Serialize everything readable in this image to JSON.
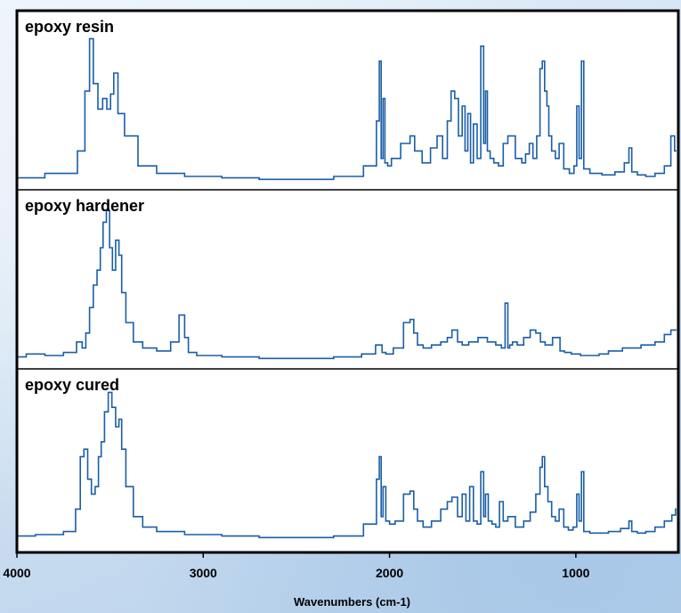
{
  "chart_data": {
    "type": "line",
    "x_reversed": true,
    "xlim": [
      4000,
      450
    ],
    "xlabel": "Wavenumbers (cm-1)",
    "xticks": [
      4000,
      3000,
      2000,
      1000
    ],
    "grid": false,
    "colors": {
      "line": "#1a5ea8",
      "frame": "#000000",
      "plot_bg": "#ffffff"
    },
    "panels": [
      {
        "title": "epoxy resin",
        "x": [
          4000,
          3700,
          3650,
          3620,
          3600,
          3580,
          3550,
          3530,
          3505,
          3490,
          3470,
          3445,
          3400,
          3300,
          3200,
          3000,
          2800,
          2600,
          2400,
          2200,
          2080,
          2060,
          2050,
          2040,
          2030,
          2020,
          2000,
          1980,
          1900,
          1880,
          1850,
          1800,
          1760,
          1730,
          1700,
          1680,
          1660,
          1640,
          1620,
          1600,
          1590,
          1570,
          1560,
          1540,
          1520,
          1500,
          1490,
          1480,
          1470,
          1450,
          1430,
          1400,
          1380,
          1350,
          1300,
          1280,
          1260,
          1240,
          1220,
          1200,
          1185,
          1175,
          1160,
          1150,
          1140,
          1120,
          1100,
          1080,
          1050,
          1020,
          1000,
          990,
          975,
          965,
          950,
          900,
          820,
          760,
          720,
          710,
          690,
          650,
          600,
          550,
          500,
          480,
          460
        ],
        "y": [
          0.02,
          0.05,
          0.2,
          0.6,
          0.95,
          0.65,
          0.48,
          0.55,
          0.48,
          0.58,
          0.72,
          0.45,
          0.3,
          0.1,
          0.05,
          0.03,
          0.02,
          0.01,
          0.01,
          0.03,
          0.1,
          0.4,
          0.8,
          0.15,
          0.55,
          0.12,
          0.1,
          0.15,
          0.25,
          0.3,
          0.2,
          0.12,
          0.22,
          0.3,
          0.15,
          0.4,
          0.6,
          0.55,
          0.3,
          0.5,
          0.2,
          0.45,
          0.12,
          0.38,
          0.15,
          0.9,
          0.25,
          0.6,
          0.2,
          0.15,
          0.12,
          0.1,
          0.25,
          0.3,
          0.15,
          0.12,
          0.18,
          0.25,
          0.15,
          0.3,
          0.75,
          0.8,
          0.6,
          0.5,
          0.3,
          0.2,
          0.15,
          0.25,
          0.08,
          0.05,
          0.1,
          0.5,
          0.15,
          0.8,
          0.08,
          0.05,
          0.04,
          0.06,
          0.12,
          0.22,
          0.06,
          0.04,
          0.03,
          0.05,
          0.1,
          0.3,
          0.2
        ]
      },
      {
        "title": "epoxy hardener",
        "x": [
          4000,
          3900,
          3800,
          3700,
          3660,
          3640,
          3620,
          3600,
          3580,
          3560,
          3545,
          3530,
          3510,
          3495,
          3480,
          3460,
          3445,
          3430,
          3400,
          3350,
          3300,
          3200,
          3150,
          3110,
          3090,
          3070,
          3000,
          2800,
          2600,
          2400,
          2200,
          2100,
          2050,
          2030,
          2010,
          1950,
          1900,
          1880,
          1860,
          1840,
          1800,
          1750,
          1700,
          1680,
          1650,
          1620,
          1600,
          1550,
          1500,
          1450,
          1410,
          1390,
          1370,
          1360,
          1350,
          1330,
          1300,
          1260,
          1230,
          1200,
          1180,
          1150,
          1100,
          1070,
          1050,
          1000,
          950,
          900,
          850,
          800,
          700,
          600,
          550,
          500,
          480,
          460
        ],
        "y": [
          0.02,
          0.04,
          0.03,
          0.05,
          0.12,
          0.08,
          0.18,
          0.35,
          0.5,
          0.6,
          0.75,
          0.92,
          1.0,
          0.75,
          0.6,
          0.8,
          0.7,
          0.45,
          0.25,
          0.12,
          0.08,
          0.06,
          0.12,
          0.3,
          0.15,
          0.05,
          0.03,
          0.02,
          0.01,
          0.01,
          0.02,
          0.04,
          0.1,
          0.05,
          0.04,
          0.08,
          0.25,
          0.27,
          0.18,
          0.1,
          0.08,
          0.1,
          0.12,
          0.15,
          0.2,
          0.12,
          0.1,
          0.12,
          0.15,
          0.12,
          0.1,
          0.08,
          0.38,
          0.08,
          0.1,
          0.12,
          0.1,
          0.15,
          0.2,
          0.18,
          0.12,
          0.1,
          0.15,
          0.06,
          0.05,
          0.04,
          0.03,
          0.03,
          0.04,
          0.06,
          0.08,
          0.1,
          0.12,
          0.17,
          0.2,
          0.2
        ]
      },
      {
        "title": "epoxy cured",
        "x": [
          4000,
          3800,
          3700,
          3670,
          3650,
          3630,
          3610,
          3590,
          3570,
          3555,
          3540,
          3520,
          3500,
          3480,
          3460,
          3445,
          3430,
          3400,
          3350,
          3300,
          3200,
          3000,
          2800,
          2600,
          2400,
          2200,
          2080,
          2060,
          2050,
          2040,
          2030,
          2010,
          1990,
          1950,
          1900,
          1880,
          1860,
          1840,
          1800,
          1750,
          1700,
          1680,
          1650,
          1620,
          1600,
          1580,
          1560,
          1540,
          1520,
          1500,
          1490,
          1480,
          1460,
          1440,
          1420,
          1400,
          1380,
          1350,
          1300,
          1260,
          1230,
          1200,
          1185,
          1175,
          1160,
          1140,
          1120,
          1100,
          1080,
          1050,
          1030,
          1000,
          990,
          975,
          965,
          950,
          900,
          850,
          800,
          720,
          710,
          690,
          650,
          600,
          550,
          500,
          470,
          460
        ],
        "y": [
          0.02,
          0.03,
          0.05,
          0.2,
          0.55,
          0.6,
          0.4,
          0.3,
          0.35,
          0.55,
          0.65,
          0.85,
          0.98,
          0.88,
          0.75,
          0.8,
          0.6,
          0.35,
          0.15,
          0.08,
          0.05,
          0.03,
          0.02,
          0.01,
          0.01,
          0.02,
          0.1,
          0.4,
          0.55,
          0.15,
          0.35,
          0.12,
          0.1,
          0.12,
          0.3,
          0.32,
          0.2,
          0.12,
          0.08,
          0.12,
          0.2,
          0.25,
          0.28,
          0.15,
          0.3,
          0.12,
          0.35,
          0.12,
          0.1,
          0.45,
          0.15,
          0.3,
          0.12,
          0.1,
          0.08,
          0.25,
          0.12,
          0.15,
          0.08,
          0.12,
          0.18,
          0.3,
          0.48,
          0.55,
          0.35,
          0.25,
          0.15,
          0.12,
          0.2,
          0.08,
          0.06,
          0.08,
          0.3,
          0.12,
          0.45,
          0.05,
          0.04,
          0.04,
          0.05,
          0.07,
          0.12,
          0.05,
          0.04,
          0.05,
          0.08,
          0.12,
          0.16,
          0.2
        ]
      }
    ]
  }
}
